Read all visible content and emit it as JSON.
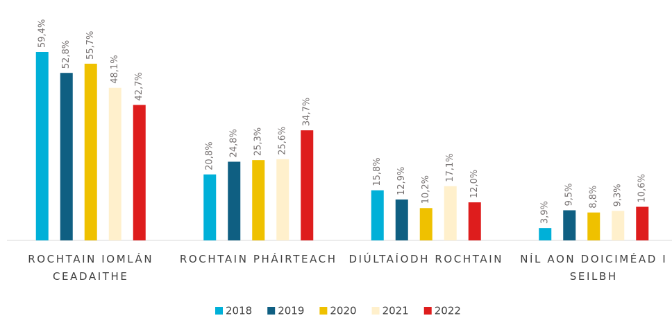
{
  "chart_data": {
    "type": "bar",
    "categories": [
      "ROCHTAIN IOMLÁN CEADAITHE",
      "ROCHTAIN PHÁIRTEACH",
      "DIÚLTAÍODH ROCHTAIN",
      "NÍL AON DOICIMÉAD I SEILBH"
    ],
    "series": [
      {
        "name": "2018",
        "color": "#00b0d8",
        "values": [
          59.4,
          20.8,
          15.8,
          3.9
        ],
        "value_labels": [
          "59,4%",
          "20,8%",
          "15,8%",
          "3,9%"
        ]
      },
      {
        "name": "2019",
        "color": "#0f5f82",
        "values": [
          52.8,
          24.8,
          12.9,
          9.5
        ],
        "value_labels": [
          "52,8%",
          "24,8%",
          "12,9%",
          "9,5%"
        ]
      },
      {
        "name": "2020",
        "color": "#efc100",
        "values": [
          55.7,
          25.3,
          10.2,
          8.8
        ],
        "value_labels": [
          "55,7%",
          "25,3%",
          "10,2%",
          "8,8%"
        ]
      },
      {
        "name": "2021",
        "color": "#fff0cc",
        "values": [
          48.1,
          25.6,
          17.1,
          9.3
        ],
        "value_labels": [
          "48,1%",
          "25,6%",
          "17,1%",
          "9,3%"
        ]
      },
      {
        "name": "2022",
        "color": "#de1d1d",
        "values": [
          42.7,
          34.7,
          12.0,
          10.6
        ],
        "value_labels": [
          "42,7%",
          "34,7%",
          "12,0%",
          "10,6%"
        ]
      }
    ],
    "legend": "bottom"
  }
}
